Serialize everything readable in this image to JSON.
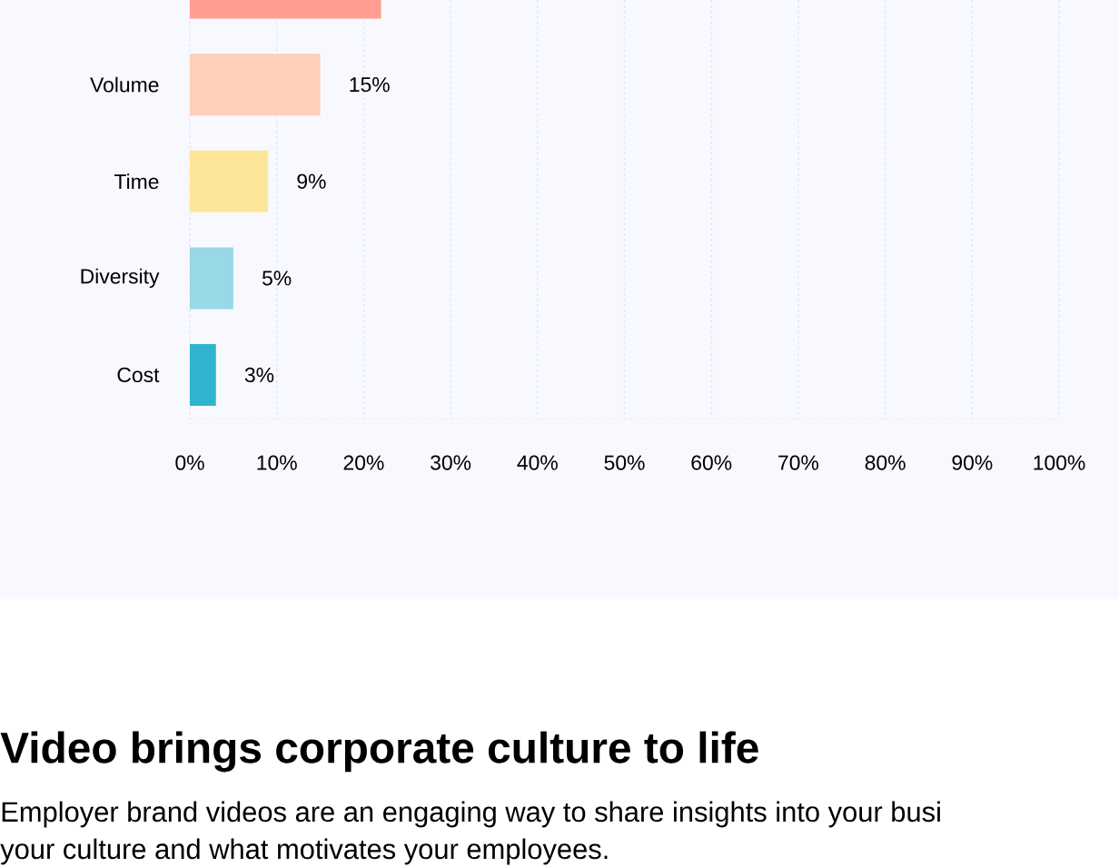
{
  "chart_data": {
    "type": "bar",
    "orientation": "horizontal",
    "categories": [
      null,
      "Volume",
      "Time",
      "Diversity",
      "Cost"
    ],
    "values": [
      22,
      15,
      9,
      5,
      3
    ],
    "colors": [
      "#ff9d90",
      "#ffd0b8",
      "#fde697",
      "#99d8e6",
      "#30b3cf"
    ],
    "value_labels": [
      null,
      "15%",
      "9%",
      "5%",
      "3%"
    ],
    "xlim": [
      0,
      100
    ],
    "xticks": [
      {
        "value": 0,
        "label": "0%"
      },
      {
        "value": 10,
        "label": "10%"
      },
      {
        "value": 20,
        "label": "20%"
      },
      {
        "value": 30,
        "label": "30%"
      },
      {
        "value": 40,
        "label": "40%"
      },
      {
        "value": 50,
        "label": "50%"
      },
      {
        "value": 60,
        "label": "60%"
      },
      {
        "value": 70,
        "label": "70%"
      },
      {
        "value": 80,
        "label": "80%"
      },
      {
        "value": 90,
        "label": "90%"
      },
      {
        "value": 100,
        "label": "100%"
      }
    ],
    "grid": "x",
    "annotations": [
      "Video brings corporate culture to life",
      "Employer brand videos are an engaging way to share insights into your busi",
      "your culture and what motivates your employees."
    ]
  }
}
